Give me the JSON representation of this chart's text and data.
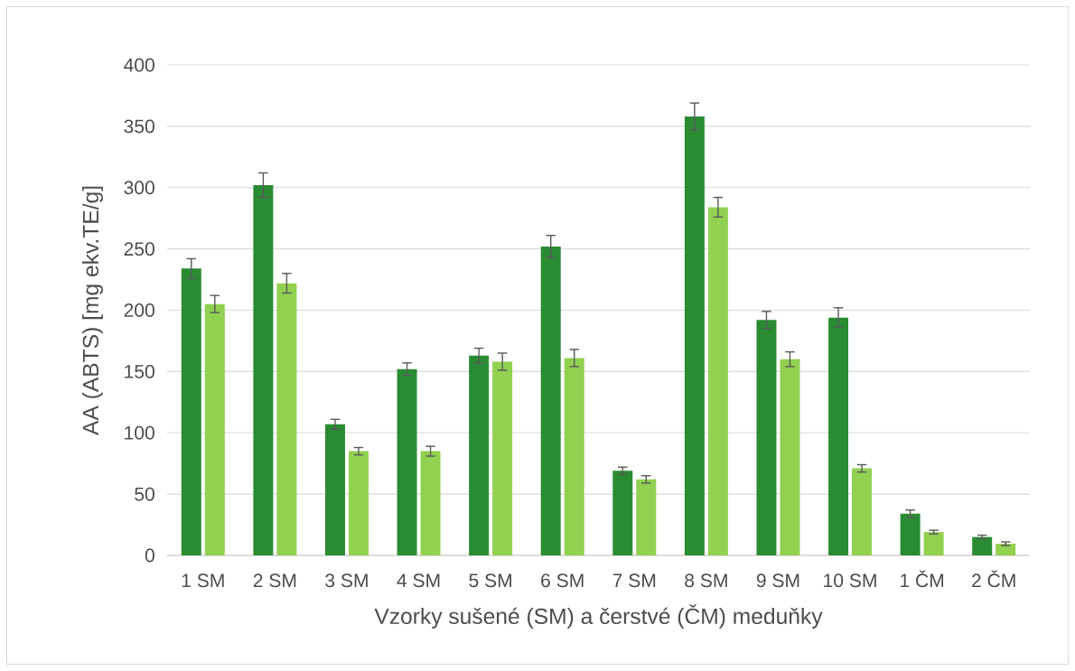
{
  "chart_data": {
    "type": "bar",
    "xlabel": "Vzorky sušené (SM) a čerstvé (ČM) meduňky",
    "ylabel": "AA (ABTS) [mg ekv.TE/g]",
    "categories": [
      "1 SM",
      "2 SM",
      "3 SM",
      "4 SM",
      "5 SM",
      "6 SM",
      "7 SM",
      "8 SM",
      "9 SM",
      "10 SM",
      "1 ČM",
      "2 ČM"
    ],
    "series": [
      {
        "color": "#2a8c32",
        "values": [
          234,
          302,
          107,
          152,
          163,
          252,
          69,
          358,
          192,
          194,
          34,
          15
        ],
        "errors": [
          8,
          10,
          4,
          5,
          6,
          9,
          3,
          11,
          7,
          8,
          3,
          1.5
        ]
      },
      {
        "color": "#92d050",
        "values": [
          205,
          222,
          85,
          85,
          158,
          161,
          62,
          284,
          160,
          71,
          19,
          9.5
        ],
        "errors": [
          7,
          8,
          3,
          4,
          7,
          7,
          3,
          8,
          6,
          3,
          1.5,
          1.5
        ]
      }
    ],
    "ylim": [
      0,
      400
    ],
    "yticks": [
      0,
      50,
      100,
      150,
      200,
      250,
      300,
      350,
      400
    ],
    "grid": "y"
  }
}
